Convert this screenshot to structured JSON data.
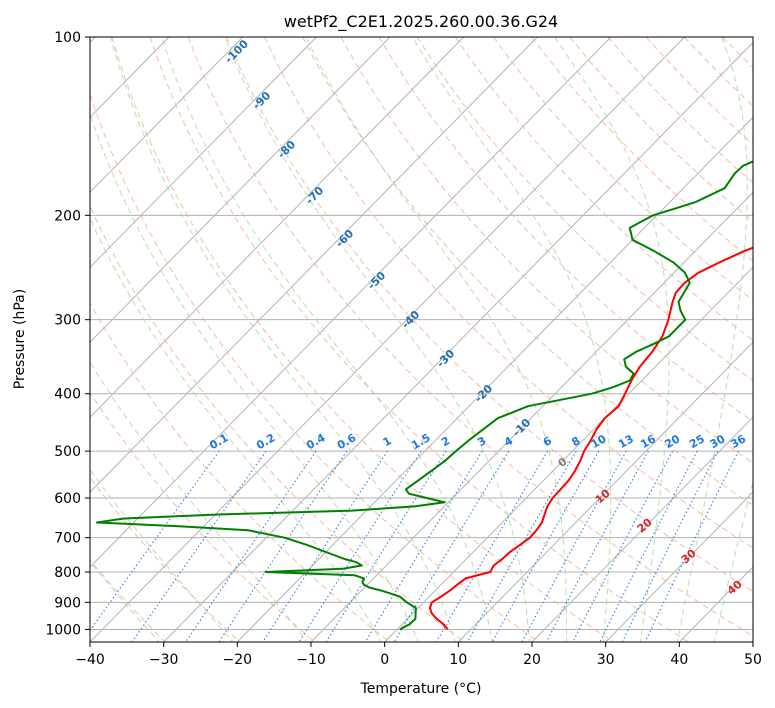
{
  "chart_data": {
    "type": "line",
    "title": "wetPf2_C2E1.2025.260.00.36.G24",
    "xlabel": "Temperature (°C)",
    "ylabel": "Pressure (hPa)",
    "xlim": [
      -40,
      50
    ],
    "ylim": [
      1050,
      100
    ],
    "y_scale": "log",
    "x_ticks": [
      -40,
      -30,
      -20,
      -10,
      0,
      10,
      20,
      30,
      40,
      50
    ],
    "x_tick_labels": [
      "−40",
      "−30",
      "−20",
      "−10",
      "0",
      "10",
      "20",
      "30",
      "40",
      "50"
    ],
    "y_ticks": [
      100,
      200,
      300,
      400,
      500,
      600,
      700,
      800,
      900,
      1000
    ],
    "y_tick_labels": [
      "100",
      "200",
      "300",
      "400",
      "500",
      "600",
      "700",
      "800",
      "900",
      "1000"
    ],
    "grid": true,
    "colors": {
      "temperature": "#ff0000",
      "dewpoint": "#008000",
      "dry_adiabats": "#f4a582",
      "moist_adiabats": "#a8d5a2",
      "mixing_ratio": "#1f77e0",
      "isotherms": "#999999",
      "isotherm_labels": "#1f6fb4",
      "moist_labels": "#d62728",
      "zero_label": "#808080"
    },
    "series": [
      {
        "key": "temperature",
        "p": [
          1000,
          980,
          960,
          940,
          920,
          900,
          880,
          860,
          840,
          820,
          800,
          780,
          760,
          740,
          720,
          700,
          680,
          660,
          640,
          620,
          600,
          580,
          560,
          540,
          520,
          500,
          480,
          460,
          440,
          420,
          400,
          380,
          360,
          340,
          320,
          300,
          280,
          270,
          260,
          250,
          240,
          230,
          220,
          210,
          200,
          190,
          180,
          170,
          160,
          150,
          140,
          130,
          120,
          110,
          100
        ],
        "t": [
          6.9,
          5.6,
          4.0,
          2.6,
          1.6,
          1.1,
          1.6,
          2.0,
          2.2,
          2.5,
          5.0,
          4.6,
          4.9,
          5.0,
          5.4,
          5.8,
          5.7,
          5.4,
          4.7,
          4.0,
          3.6,
          3.5,
          3.4,
          3.0,
          2.4,
          1.6,
          1.1,
          0.4,
          0.0,
          0.3,
          -0.5,
          -1.4,
          -2.1,
          -2.4,
          -3.1,
          -4.5,
          -6.3,
          -7.1,
          -7.2,
          -6.7,
          -5.2,
          -3.4,
          -0.9,
          2.2,
          5.2,
          8.1,
          10.6,
          12.9,
          14.9,
          16.3,
          17.7,
          19.0,
          19.9,
          21.5,
          24.0
        ]
      },
      {
        "key": "dewpoint",
        "p": [
          1000,
          980,
          960,
          940,
          920,
          900,
          880,
          860,
          850,
          840,
          830,
          820,
          810,
          800,
          790,
          780,
          770,
          760,
          740,
          720,
          700,
          680,
          670,
          660,
          650,
          640,
          630,
          620,
          610,
          600,
          590,
          580,
          560,
          540,
          520,
          500,
          480,
          460,
          440,
          420,
          400,
          390,
          380,
          370,
          360,
          350,
          340,
          330,
          320,
          300,
          290,
          280,
          270,
          260,
          250,
          240,
          230,
          220,
          210,
          200,
          195,
          190,
          180,
          170,
          165,
          160,
          150,
          140,
          130,
          120,
          110,
          100
        ],
        "t": [
          0.4,
          1.0,
          1.1,
          0.4,
          -0.3,
          -2.3,
          -4.0,
          -7.3,
          -9.3,
          -10.5,
          -11.1,
          -11.3,
          -13.0,
          -25.5,
          -15.5,
          -13.3,
          -14.5,
          -16.6,
          -20.0,
          -23.5,
          -27.5,
          -33.5,
          -43.0,
          -55.0,
          -52.0,
          -40.0,
          -22.0,
          -14.0,
          -10.5,
          -13.5,
          -16.5,
          -17.5,
          -17.0,
          -16.5,
          -16.0,
          -15.8,
          -15.5,
          -15.0,
          -14.5,
          -12.0,
          -5.0,
          -3.0,
          -1.6,
          -2.0,
          -4.0,
          -5.2,
          -4.6,
          -3.3,
          -2.2,
          -2.2,
          -4.0,
          -5.5,
          -6.0,
          -6.5,
          -8.5,
          -11.5,
          -15.5,
          -20.0,
          -22.0,
          -20.5,
          -18.5,
          -16.5,
          -14.4,
          -15.0,
          -14.9,
          -13.5,
          -10.5,
          -9.0,
          -8.0,
          -7.0,
          -6.5,
          -6.0
        ]
      }
    ],
    "isotherm_labels": [
      "-100",
      "-90",
      "-80",
      "-70",
      "-60",
      "-50",
      "-40",
      "-30",
      "-20",
      "-10"
    ],
    "mixing_ratio_labels": [
      "0.1",
      "0.2",
      "0.4",
      "0.6",
      "1",
      "1.5",
      "2",
      "3",
      "4",
      "6",
      "8",
      "10",
      "13",
      "16",
      "20",
      "25",
      "30",
      "36"
    ],
    "moist_adiabat_labels": [
      "0",
      "10",
      "20",
      "30",
      "40"
    ]
  }
}
